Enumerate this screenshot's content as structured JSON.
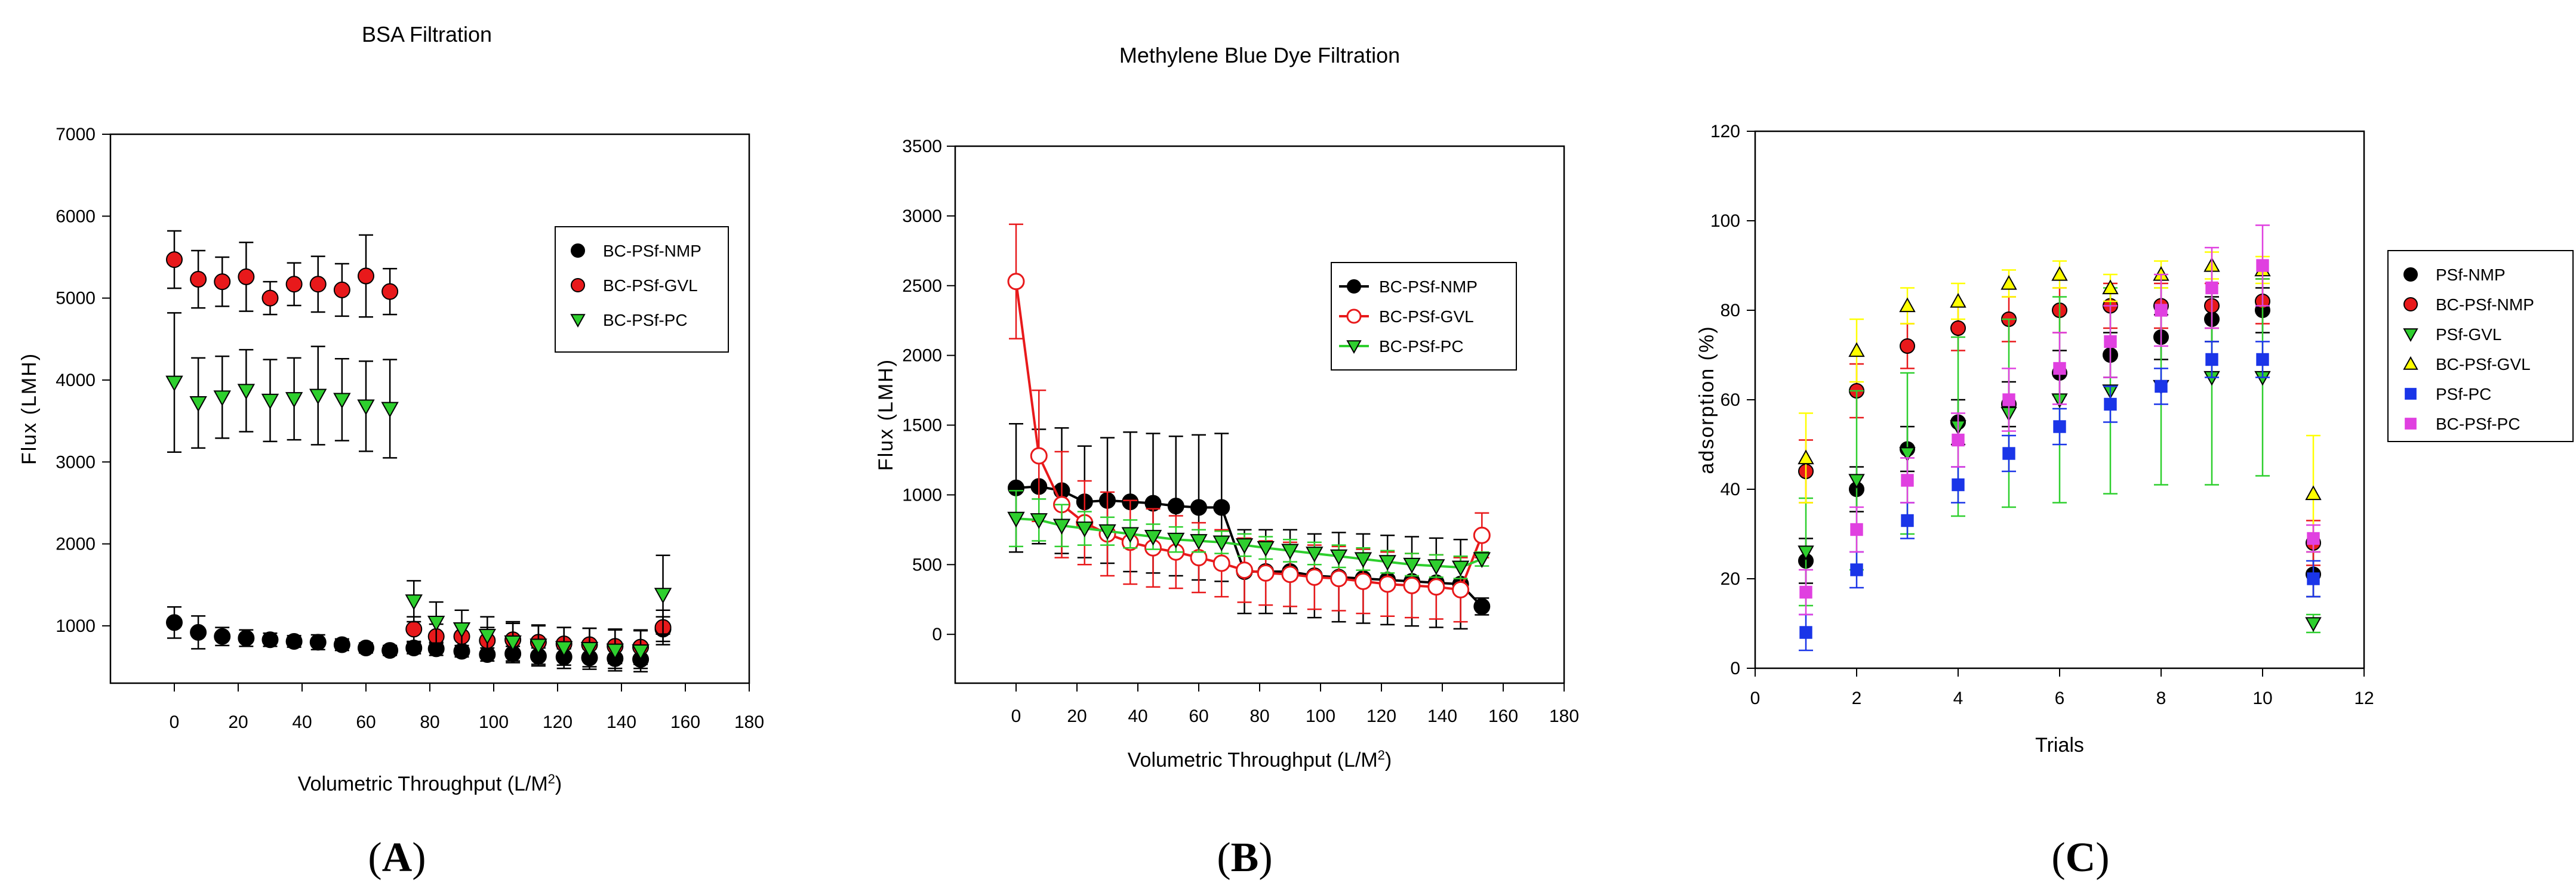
{
  "chart_data": [
    {
      "id": "A",
      "type": "scatter",
      "title": "BSA Filtration",
      "xlabel": "Volumetric Throughput (L/M",
      "xlabel_sup": "2",
      "xlabel_tail": ")",
      "ylabel": "Flux (LMH)",
      "panel_label_letter": "A",
      "xlim": [
        -20,
        180
      ],
      "ylim": [
        300,
        7000
      ],
      "xticks": [
        0,
        20,
        40,
        60,
        80,
        100,
        120,
        140,
        160,
        180
      ],
      "yticks": [
        1000,
        2000,
        3000,
        4000,
        5000,
        6000,
        7000
      ],
      "legend_position": "right-middle",
      "series": [
        {
          "name": "BC-PSf-NMP",
          "marker": "circle",
          "color": "#000000",
          "line": false,
          "x": [
            0,
            7.5,
            15,
            22.5,
            30,
            37.5,
            45,
            52.5,
            60,
            67.5,
            75,
            82,
            90,
            98,
            106,
            114,
            122,
            130,
            138,
            146,
            153
          ],
          "y": [
            1040,
            920,
            870,
            850,
            830,
            810,
            800,
            770,
            730,
            700,
            730,
            720,
            690,
            650,
            660,
            630,
            620,
            610,
            600,
            590,
            960
          ],
          "err": [
            190,
            200,
            110,
            100,
            80,
            70,
            90,
            70,
            60,
            60,
            70,
            80,
            70,
            80,
            90,
            100,
            100,
            110,
            120,
            110,
            150
          ]
        },
        {
          "name": "BC-PSf-GVL",
          "marker": "circle",
          "color": "#e8191b",
          "line": false,
          "x": [
            0,
            7.5,
            15,
            22.5,
            30,
            37.5,
            45,
            52.5,
            60,
            67.5,
            75,
            82,
            90,
            98,
            106,
            114,
            122,
            130,
            138,
            146,
            153
          ],
          "y": [
            5470,
            5230,
            5200,
            5260,
            5000,
            5170,
            5170,
            5100,
            5270,
            5080,
            960,
            870,
            870,
            820,
            830,
            800,
            780,
            770,
            750,
            740,
            980
          ],
          "err": [
            350,
            350,
            300,
            420,
            200,
            260,
            340,
            320,
            500,
            280,
            150,
            150,
            150,
            160,
            200,
            200,
            200,
            200,
            210,
            210,
            210
          ]
        },
        {
          "name": "BC-PSf-PC",
          "marker": "triangle-down",
          "color": "#2ecf2e",
          "line": false,
          "x": [
            0,
            7.5,
            15,
            22.5,
            30,
            37.5,
            45,
            52.5,
            60,
            67.5,
            75,
            82,
            90,
            98,
            106,
            114,
            122,
            130,
            138,
            146,
            153
          ],
          "y": [
            3970,
            3720,
            3790,
            3870,
            3750,
            3770,
            3810,
            3760,
            3680,
            3650,
            1300,
            1040,
            960,
            880,
            800,
            760,
            730,
            720,
            700,
            690,
            1380
          ],
          "err": [
            850,
            550,
            500,
            500,
            500,
            500,
            600,
            500,
            550,
            600,
            250,
            250,
            230,
            230,
            250,
            250,
            250,
            250,
            250,
            250,
            480
          ]
        }
      ]
    },
    {
      "id": "B",
      "type": "line",
      "title": "Methylene Blue Dye Filtration",
      "xlabel": "Volumetric Throughput (L/M",
      "xlabel_sup": "2",
      "xlabel_tail": ")",
      "ylabel": "Flux (LMH)",
      "panel_label_letter": "B",
      "xlim": [
        -20,
        180
      ],
      "ylim": [
        -350,
        3500
      ],
      "xticks": [
        0,
        20,
        40,
        60,
        80,
        100,
        120,
        140,
        160,
        180
      ],
      "yticks": [
        0,
        500,
        1000,
        1500,
        2000,
        2500,
        3000,
        3500
      ],
      "legend_position": "right-upper",
      "series": [
        {
          "name": "BC-PSf-NMP",
          "marker": "circle",
          "color": "#000000",
          "line": true,
          "x": [
            0,
            7.5,
            15,
            22.5,
            30,
            37.5,
            45,
            52.5,
            60,
            67.5,
            75,
            82,
            90,
            98,
            106,
            114,
            122,
            130,
            138,
            146,
            153
          ],
          "y": [
            1050,
            1060,
            1030,
            950,
            960,
            950,
            940,
            920,
            910,
            910,
            450,
            450,
            450,
            420,
            410,
            400,
            390,
            380,
            370,
            360,
            200
          ],
          "err": [
            460,
            410,
            450,
            400,
            450,
            500,
            500,
            500,
            520,
            530,
            300,
            300,
            300,
            300,
            320,
            320,
            320,
            320,
            320,
            320,
            60
          ]
        },
        {
          "name": "BC-PSf-GVL",
          "marker": "open-circle",
          "color": "#e8191b",
          "line": true,
          "x": [
            0,
            7.5,
            15,
            22.5,
            30,
            37.5,
            45,
            52.5,
            60,
            67.5,
            75,
            82,
            90,
            98,
            106,
            114,
            122,
            130,
            138,
            146,
            153
          ],
          "y": [
            2530,
            1280,
            930,
            800,
            720,
            660,
            620,
            590,
            550,
            510,
            460,
            440,
            430,
            410,
            400,
            380,
            360,
            350,
            340,
            320,
            710
          ],
          "err": [
            410,
            470,
            380,
            300,
            300,
            300,
            280,
            260,
            250,
            240,
            230,
            230,
            230,
            230,
            230,
            230,
            230,
            230,
            230,
            230,
            160
          ]
        },
        {
          "name": "BC-PSf-PC",
          "marker": "triangle-down",
          "color": "#2ecf2e",
          "line": true,
          "x": [
            0,
            7.5,
            15,
            22.5,
            30,
            37.5,
            45,
            52.5,
            60,
            67.5,
            75,
            82,
            90,
            98,
            106,
            114,
            122,
            130,
            138,
            146,
            153
          ],
          "y": [
            830,
            820,
            780,
            760,
            740,
            720,
            700,
            680,
            670,
            660,
            640,
            620,
            600,
            580,
            560,
            540,
            520,
            500,
            490,
            480,
            540
          ],
          "err": [
            200,
            150,
            150,
            120,
            100,
            100,
            90,
            90,
            80,
            80,
            80,
            80,
            80,
            80,
            80,
            80,
            80,
            80,
            80,
            80,
            50
          ]
        }
      ]
    },
    {
      "id": "C",
      "type": "scatter",
      "title": "",
      "xlabel": "Trials",
      "ylabel": "adsorption (%)",
      "panel_label_letter": "C",
      "xlim": [
        0,
        12
      ],
      "ylim": [
        0,
        120
      ],
      "xticks": [
        0,
        2,
        4,
        6,
        8,
        10,
        12
      ],
      "yticks": [
        0,
        20,
        40,
        60,
        80,
        100,
        120
      ],
      "legend_position": "outside-right",
      "series": [
        {
          "name": "PSf-NMP",
          "marker": "circle",
          "color": "#000000",
          "x": [
            1,
            2,
            3,
            4,
            5,
            6,
            7,
            8,
            9,
            10,
            11
          ],
          "y": [
            24,
            40,
            49,
            55,
            59,
            66,
            70,
            74,
            78,
            80,
            21
          ],
          "err": [
            5,
            5,
            5,
            5,
            5,
            5,
            5,
            5,
            5,
            5,
            5
          ]
        },
        {
          "name": "BC-PSf-NMP",
          "marker": "circle",
          "color": "#e8191b",
          "x": [
            1,
            2,
            3,
            4,
            5,
            6,
            7,
            8,
            9,
            10,
            11
          ],
          "y": [
            44,
            62,
            72,
            76,
            78,
            80,
            81,
            81,
            81,
            82,
            28
          ],
          "err": [
            7,
            6,
            5,
            5,
            5,
            5,
            5,
            5,
            5,
            5,
            5
          ]
        },
        {
          "name": "PSf-GVL",
          "marker": "triangle-down",
          "color": "#2ecf2e",
          "x": [
            1,
            2,
            3,
            4,
            5,
            6,
            7,
            8,
            9,
            10,
            11
          ],
          "y": [
            26,
            42,
            48,
            54,
            57,
            60,
            62,
            63,
            65,
            65,
            10
          ],
          "err": [
            12,
            20,
            18,
            20,
            21,
            23,
            23,
            22,
            24,
            22,
            2
          ]
        },
        {
          "name": "BC-PSf-GVL",
          "marker": "triangle-up",
          "color": "#ffff00",
          "x": [
            1,
            2,
            3,
            4,
            5,
            6,
            7,
            8,
            9,
            10,
            11
          ],
          "y": [
            47,
            71,
            81,
            82,
            86,
            88,
            85,
            88,
            90,
            89,
            39
          ],
          "err": [
            10,
            7,
            4,
            4,
            3,
            3,
            3,
            3,
            3,
            3,
            13
          ]
        },
        {
          "name": "PSf-PC",
          "marker": "square",
          "color": "#1a35e8",
          "x": [
            1,
            2,
            3,
            4,
            5,
            6,
            7,
            8,
            9,
            10,
            11
          ],
          "y": [
            8,
            22,
            33,
            41,
            48,
            54,
            59,
            63,
            69,
            69,
            20
          ],
          "err": [
            4,
            4,
            4,
            4,
            4,
            4,
            4,
            4,
            4,
            4,
            4
          ]
        },
        {
          "name": "BC-PSf-PC",
          "marker": "square",
          "color": "#e040e0",
          "x": [
            1,
            2,
            3,
            4,
            5,
            6,
            7,
            8,
            9,
            10,
            11
          ],
          "y": [
            17,
            31,
            42,
            51,
            60,
            67,
            73,
            80,
            85,
            90,
            29
          ],
          "err": [
            5,
            5,
            5,
            6,
            7,
            8,
            8,
            8,
            9,
            9,
            3
          ]
        }
      ]
    }
  ]
}
